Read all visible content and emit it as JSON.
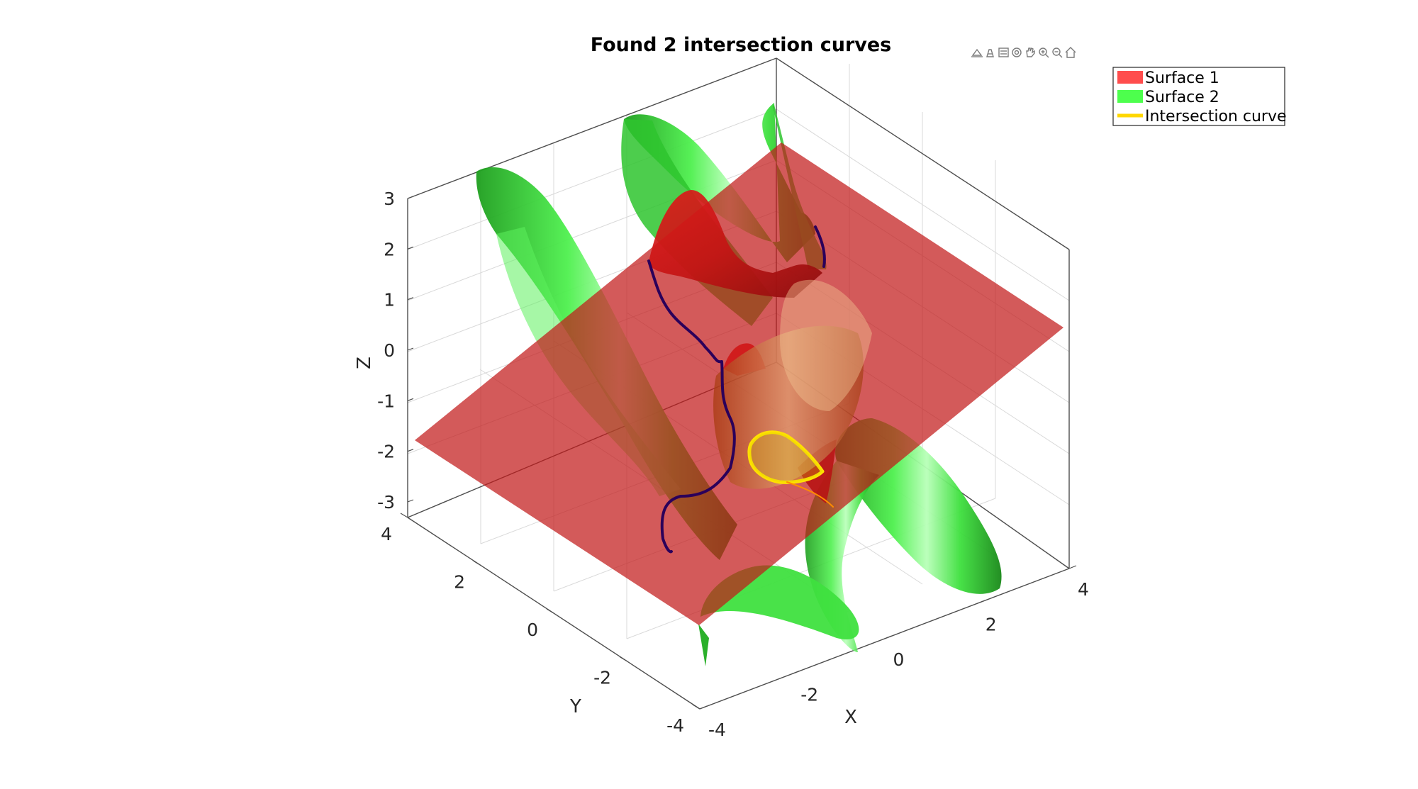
{
  "chart_data": {
    "type": "surface3d",
    "title": "Found 2 intersection curves",
    "xlabel": "X",
    "ylabel": "Y",
    "zlabel": "Z",
    "xlim": [
      -4,
      4
    ],
    "ylim": [
      -4,
      4
    ],
    "zlim": [
      -3,
      3
    ],
    "x_ticks": [
      "-4",
      "-2",
      "0",
      "2",
      "4"
    ],
    "y_ticks": [
      "-4",
      "-2",
      "0",
      "2",
      "4"
    ],
    "z_ticks": [
      "-3",
      "-2",
      "-1",
      "0",
      "1",
      "2",
      "3"
    ],
    "grid": true,
    "legend_position": "top-right",
    "series": [
      {
        "name": "Surface 1",
        "kind": "surface",
        "color": "#ff4d4d"
      },
      {
        "name": "Surface 2",
        "kind": "surface",
        "color": "#4dff4d"
      },
      {
        "name": "Intersection curve",
        "kind": "line",
        "color": "#ffd700"
      }
    ],
    "intersection_curve_count": 2
  },
  "toolbar": {
    "icons": [
      "export-icon",
      "brush-icon",
      "datatips-icon",
      "rotate-icon",
      "pan-icon",
      "zoom-in-icon",
      "zoom-out-icon",
      "home-icon"
    ]
  },
  "colors": {
    "surface1_fill": "#c81e1e",
    "surface2_fill": "#3cd23c",
    "curve_outer": "#2b005a",
    "curve_inner": "#ffe000"
  }
}
